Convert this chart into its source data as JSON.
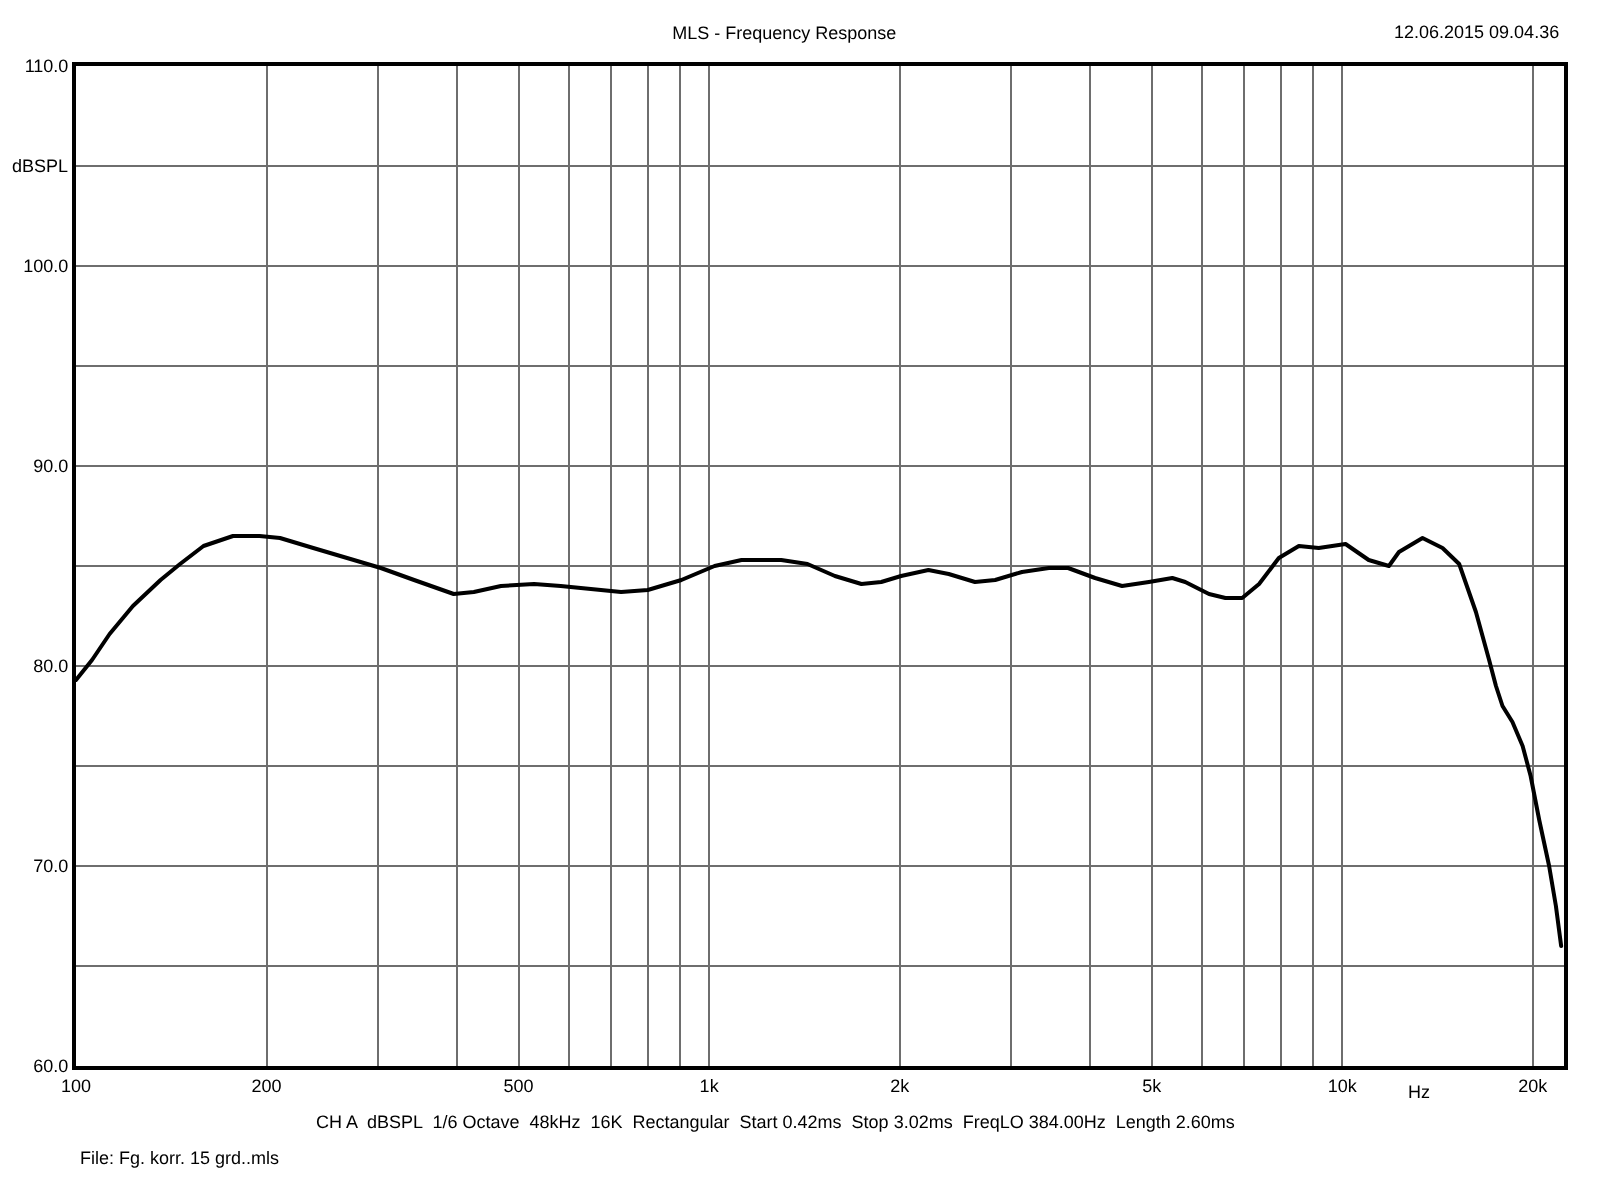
{
  "chart_data": {
    "type": "line",
    "title": "MLS - Frequency Response",
    "xlabel": "Hz",
    "ylabel": "dBSPL",
    "annotations": [
      "12.06.2015 09.04.36",
      "CH A  dBSPL  1/6 Octave  48kHz  16K  Rectangular  Start 0.42ms  Stop 3.02ms  FreqLO 384.00Hz  Length 2.60ms",
      "File: Fg. korr. 15 grd..mls"
    ],
    "log": "x",
    "color": "#000000",
    "marker": "none",
    "line_style": "solid",
    "grid": true,
    "x": [
      100,
      106,
      113,
      123,
      136,
      146,
      159,
      177,
      195,
      210,
      237,
      268,
      303,
      342,
      395,
      425,
      469,
      529,
      583,
      627,
      726,
      800,
      904,
      1020,
      1125,
      1300,
      1430,
      1580,
      1740,
      1870,
      2010,
      2220,
      2390,
      2630,
      2830,
      3120,
      3440,
      3690,
      4070,
      4490,
      4950,
      5390,
      5650,
      6160,
      6540,
      6950,
      7390,
      7940,
      8540,
      9180,
      10120,
      11010,
      11850,
      12290,
      13390,
      14400,
      15300,
      16260,
      17060,
      17490,
      17910,
      18570,
      19270,
      19840,
      20470,
      21220,
      21750,
      22170
    ],
    "values": [
      79.3,
      80.3,
      81.6,
      83.0,
      84.3,
      85.1,
      86.0,
      86.5,
      86.5,
      86.4,
      85.9,
      85.4,
      84.9,
      84.3,
      83.6,
      83.7,
      84.0,
      84.1,
      84.0,
      83.9,
      83.7,
      83.8,
      84.3,
      85.0,
      85.3,
      85.3,
      85.1,
      84.5,
      84.1,
      84.2,
      84.5,
      84.8,
      84.6,
      84.2,
      84.3,
      84.7,
      84.9,
      84.9,
      84.4,
      84.0,
      84.2,
      84.4,
      84.2,
      83.6,
      83.4,
      83.4,
      84.1,
      85.4,
      86.0,
      85.9,
      86.1,
      85.3,
      85.0,
      85.7,
      86.4,
      85.9,
      85.1,
      82.7,
      80.3,
      79.0,
      78.0,
      77.2,
      76.0,
      74.5,
      72.3,
      70.0,
      68.0,
      66.0
    ],
    "xlim": [
      100,
      22400
    ],
    "ylim": [
      60,
      110
    ],
    "xticks": [
      100,
      {
        "value": 200,
        "label": "200"
      },
      {
        "value": 300,
        "label": null
      },
      {
        "value": 400,
        "label": null
      },
      500,
      {
        "value": 600,
        "label": null
      },
      {
        "value": 700,
        "label": null
      },
      {
        "value": 800,
        "label": null
      },
      {
        "value": 900,
        "label": null
      },
      {
        "value": 1000,
        "label": "1k"
      },
      {
        "value": 2000,
        "label": "2k"
      },
      {
        "value": 3000,
        "label": null
      },
      {
        "value": 4000,
        "label": null
      },
      {
        "value": 5000,
        "label": "5k"
      },
      {
        "value": 6000,
        "label": null
      },
      {
        "value": 7000,
        "label": null
      },
      {
        "value": 8000,
        "label": null
      },
      {
        "value": 9000,
        "label": null
      },
      {
        "value": 10000,
        "label": "10k"
      },
      {
        "value": 20000,
        "label": "20k"
      }
    ],
    "yticks": [
      {
        "value": 60,
        "label": "60.0"
      },
      {
        "value": 65,
        "label": null
      },
      {
        "value": 70,
        "label": "70.0"
      },
      {
        "value": 75,
        "label": null
      },
      {
        "value": 80,
        "label": "80.0"
      },
      {
        "value": 85,
        "label": null
      },
      {
        "value": 90,
        "label": "90.0"
      },
      {
        "value": 95,
        "label": null
      },
      {
        "value": 100,
        "label": "100.0"
      },
      {
        "value": 105,
        "label": null
      },
      {
        "value": 110,
        "label": "110.0"
      }
    ]
  }
}
